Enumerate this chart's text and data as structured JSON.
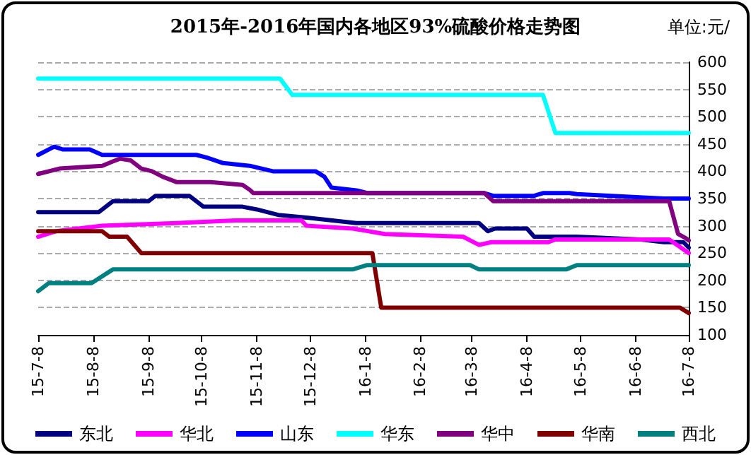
{
  "chart_data": {
    "type": "line",
    "title": "2015年-2016年国内各地区93%硫酸价格走势图",
    "annotations": [
      "单位:元/"
    ],
    "xlim": [
      "2015-07-08",
      "2016-07-08"
    ],
    "xticks": [
      {
        "value": "2015-07-08",
        "label": "15-7-8"
      },
      {
        "value": "2015-08-08",
        "label": "15-8-8"
      },
      {
        "value": "2015-09-08",
        "label": "15-9-8"
      },
      {
        "value": "2015-10-08",
        "label": "15-10-8"
      },
      {
        "value": "2015-11-08",
        "label": "15-11-8"
      },
      {
        "value": "2015-12-08",
        "label": "15-12-8"
      },
      {
        "value": "2016-01-08",
        "label": "16-1-8"
      },
      {
        "value": "2016-02-08",
        "label": "16-2-8"
      },
      {
        "value": "2016-03-08",
        "label": "16-3-8"
      },
      {
        "value": "2016-04-08",
        "label": "16-4-8"
      },
      {
        "value": "2016-05-08",
        "label": "16-5-8"
      },
      {
        "value": "2016-06-08",
        "label": "16-6-8"
      },
      {
        "value": "2016-07-08",
        "label": "16-7-8"
      }
    ],
    "ylim": [
      100,
      600
    ],
    "yticks": [
      100,
      150,
      200,
      250,
      300,
      350,
      400,
      450,
      500,
      550,
      600
    ],
    "grid": "y",
    "legend": "bottom",
    "marker": "none",
    "line_style": "solid",
    "series": [
      {
        "name": "东北",
        "color": "#000080",
        "x": [
          "2015-07-08",
          "2015-08-11",
          "2015-08-19",
          "2015-09-08",
          "2015-09-12",
          "2015-10-01",
          "2015-10-09",
          "2015-10-31",
          "2015-11-08",
          "2015-11-20",
          "2015-12-06",
          "2016-01-03",
          "2016-03-12",
          "2016-03-17",
          "2016-03-21",
          "2016-04-08",
          "2016-04-12",
          "2016-05-06",
          "2016-06-11",
          "2016-06-24",
          "2016-07-05",
          "2016-07-08"
        ],
        "values": [
          325,
          325,
          345,
          345,
          355,
          355,
          335,
          335,
          330,
          320,
          315,
          305,
          305,
          290,
          295,
          295,
          280,
          280,
          275,
          270,
          270,
          260
        ]
      },
      {
        "name": "华北",
        "color": "#ff00ff",
        "x": [
          "2015-07-08",
          "2015-07-18",
          "2015-08-13",
          "2015-09-24",
          "2015-10-27",
          "2015-12-03",
          "2015-12-06",
          "2016-01-01",
          "2016-01-19",
          "2016-03-03",
          "2016-03-12",
          "2016-03-19",
          "2016-04-20",
          "2016-04-24",
          "2016-06-27",
          "2016-07-08"
        ],
        "values": [
          280,
          290,
          300,
          305,
          310,
          310,
          300,
          295,
          285,
          280,
          265,
          270,
          270,
          275,
          275,
          250
        ]
      },
      {
        "name": "山东",
        "color": "#0000ff",
        "x": [
          "2015-07-08",
          "2015-07-17",
          "2015-07-22",
          "2015-08-06",
          "2015-08-13",
          "2015-10-05",
          "2015-10-11",
          "2015-10-20",
          "2015-11-04",
          "2015-11-17",
          "2015-12-11",
          "2015-12-16",
          "2015-12-20",
          "2016-01-03",
          "2016-01-09",
          "2016-03-15",
          "2016-03-20",
          "2016-04-12",
          "2016-04-17",
          "2016-05-02",
          "2016-05-06",
          "2016-06-24",
          "2016-07-08"
        ],
        "values": [
          430,
          445,
          440,
          440,
          430,
          430,
          425,
          415,
          410,
          400,
          400,
          390,
          370,
          365,
          360,
          360,
          355,
          355,
          360,
          360,
          358,
          350,
          350
        ]
      },
      {
        "name": "华东",
        "color": "#00ffff",
        "x": [
          "2015-07-08",
          "2015-11-21",
          "2015-11-28",
          "2016-04-17",
          "2016-04-24",
          "2016-07-08"
        ],
        "values": [
          570,
          570,
          540,
          540,
          470,
          470
        ]
      },
      {
        "name": "华中",
        "color": "#800080",
        "x": [
          "2015-07-08",
          "2015-07-20",
          "2015-08-13",
          "2015-08-19",
          "2015-08-23",
          "2015-08-29",
          "2015-09-04",
          "2015-09-10",
          "2015-09-16",
          "2015-09-24",
          "2015-10-13",
          "2015-10-31",
          "2015-11-04",
          "2015-11-06",
          "2016-03-15",
          "2016-03-20",
          "2016-06-27",
          "2016-07-02",
          "2016-07-06",
          "2016-07-08"
        ],
        "values": [
          395,
          405,
          410,
          418,
          423,
          420,
          405,
          400,
          390,
          380,
          380,
          375,
          366,
          360,
          360,
          345,
          345,
          285,
          278,
          273
        ]
      },
      {
        "name": "华南",
        "color": "#800000",
        "x": [
          "2015-07-08",
          "2015-08-13",
          "2015-08-17",
          "2015-08-27",
          "2015-09-04",
          "2016-01-12",
          "2016-01-17",
          "2016-07-03",
          "2016-07-08"
        ],
        "values": [
          290,
          290,
          280,
          280,
          250,
          250,
          150,
          150,
          140
        ]
      },
      {
        "name": "西北",
        "color": "#008080",
        "x": [
          "2015-07-08",
          "2015-07-14",
          "2015-08-07",
          "2015-08-19",
          "2016-01-01",
          "2016-01-09",
          "2016-03-07",
          "2016-03-12",
          "2016-04-30",
          "2016-05-06",
          "2016-07-08"
        ],
        "values": [
          180,
          195,
          195,
          220,
          220,
          228,
          228,
          220,
          220,
          228,
          228
        ]
      }
    ]
  }
}
